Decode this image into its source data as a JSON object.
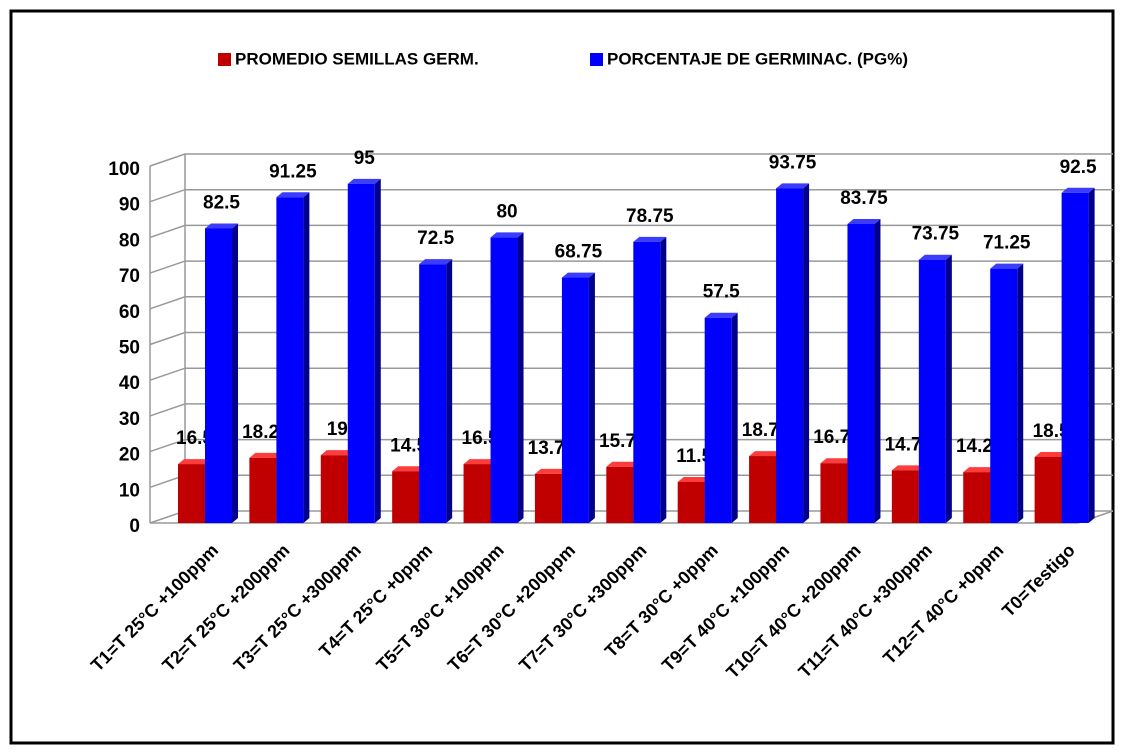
{
  "chart_data": {
    "type": "bar3d",
    "categories": [
      "T1=T 25°C +100ppm",
      "T2=T 25°C +200ppm",
      "T3=T 25°C +300ppm",
      "T4=T 25°C +0ppm",
      "T5=T 30°C +100ppm",
      "T6=T 30°C +200ppm",
      "T7=T 30°C +300ppm",
      "T8=T 30°C +0ppm",
      "T9=T 40°C +100ppm",
      "T10=T 40°C +200ppm",
      "T11=T 40°C +300ppm",
      "T12=T 40°C +0ppm",
      "T0=Testigo"
    ],
    "series": [
      {
        "name": "PROMEDIO SEMILLAS GERM.",
        "color": "#c00000",
        "values": [
          16.5,
          18.25,
          19,
          14.5,
          16.5,
          13.75,
          15.75,
          11.5,
          18.75,
          16.75,
          14.75,
          14.25,
          18.5
        ]
      },
      {
        "name": "PORCENTAJE DE GERMINAC. (PG%)",
        "color": "#0000ff",
        "values": [
          82.5,
          91.25,
          95,
          72.5,
          80,
          68.75,
          78.75,
          57.5,
          93.75,
          83.75,
          73.75,
          71.25,
          92.5
        ]
      }
    ],
    "ylim": [
      0,
      100
    ],
    "yticks": [
      0,
      10,
      20,
      30,
      40,
      50,
      60,
      70,
      80,
      90,
      100
    ],
    "grid": true,
    "legend": "top"
  }
}
